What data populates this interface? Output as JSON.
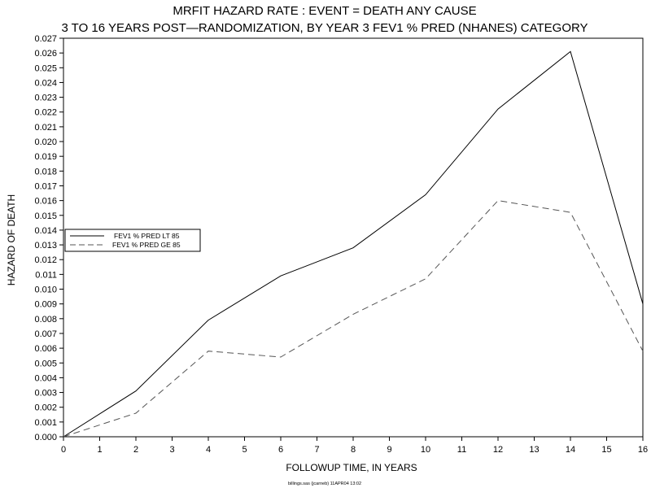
{
  "chart_data": {
    "type": "line",
    "title": "MRFIT HAZARD RATE : EVENT =  DEATH ANY CAUSE",
    "subtitle": "3 TO 16 YEARS POST—RANDOMIZATION, BY YEAR 3 FEV1 % PRED (NHANES) CATEGORY",
    "xlabel": "FOLLOWUP TIME, IN YEARS",
    "ylabel": "HAZARD OF DEATH",
    "xlim": [
      0,
      16
    ],
    "ylim": [
      0,
      0.027
    ],
    "xticks": [
      0,
      1,
      2,
      3,
      4,
      5,
      6,
      7,
      8,
      9,
      10,
      11,
      12,
      13,
      14,
      15,
      16
    ],
    "yticks": [
      "0.000",
      "0.001",
      "0.002",
      "0.003",
      "0.004",
      "0.005",
      "0.006",
      "0.007",
      "0.008",
      "0.009",
      "0.010",
      "0.011",
      "0.012",
      "0.013",
      "0.014",
      "0.015",
      "0.016",
      "0.017",
      "0.018",
      "0.019",
      "0.020",
      "0.021",
      "0.022",
      "0.023",
      "0.024",
      "0.025",
      "0.026",
      "0.027"
    ],
    "grid": false,
    "legend_position": "left",
    "x": [
      0,
      2,
      4,
      6,
      8,
      10,
      12,
      14,
      16
    ],
    "series": [
      {
        "name": "FEV1 % PRED  LT  85",
        "style": "solid",
        "values": [
          0.0,
          0.0031,
          0.0079,
          0.0109,
          0.0128,
          0.0164,
          0.0222,
          0.0261,
          0.009
        ]
      },
      {
        "name": "FEV1 % PRED  GE  85",
        "style": "dashed",
        "values": [
          0.0,
          0.0016,
          0.0058,
          0.0054,
          0.0083,
          0.0107,
          0.016,
          0.0152,
          0.0058
        ]
      }
    ],
    "colors": {
      "line": "#000000",
      "dashed_line": "#555555"
    },
    "footer": "billings.sas (jcarneb) 11APR04 13:02"
  }
}
